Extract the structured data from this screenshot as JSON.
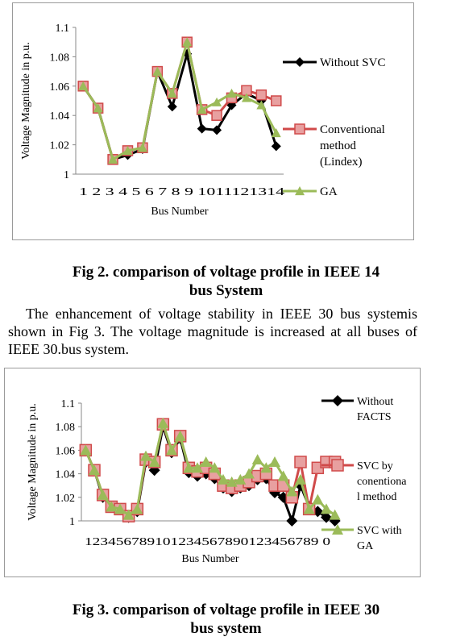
{
  "chart_data": [
    {
      "type": "line",
      "title": "",
      "xlabel": "Bus Number",
      "ylabel": "Voltage Magnitude in p.u.",
      "ylim": [
        1,
        1.1
      ],
      "yticks": [
        "1",
        "1.02",
        "1.04",
        "1.06",
        "1.08",
        "1.1"
      ],
      "x_tick_text": "1 2 3 4 5 6 7 8 9 1011121314",
      "categories": [
        "1",
        "2",
        "3",
        "4",
        "5",
        "6",
        "7",
        "8",
        "9",
        "10",
        "11",
        "12",
        "13",
        "14"
      ],
      "grid": false,
      "legend_position": "right",
      "series": [
        {
          "name": "Without SVC",
          "color": "#000000",
          "marker": "diamond",
          "values": [
            1.06,
            1.045,
            1.01,
            1.013,
            1.017,
            1.07,
            1.046,
            1.082,
            1.031,
            1.03,
            1.047,
            1.055,
            1.05,
            1.019
          ]
        },
        {
          "name": "Conventional method (Lindex)",
          "color": "#d04a4a",
          "marker": "square",
          "values": [
            1.06,
            1.045,
            1.01,
            1.016,
            1.018,
            1.07,
            1.055,
            1.09,
            1.044,
            1.04,
            1.052,
            1.057,
            1.054,
            1.05
          ]
        },
        {
          "name": "GA",
          "color": "#9bbb59",
          "marker": "triangle",
          "values": [
            1.06,
            1.045,
            1.01,
            1.016,
            1.018,
            1.07,
            1.055,
            1.09,
            1.044,
            1.049,
            1.055,
            1.052,
            1.047,
            1.028
          ]
        }
      ],
      "legend_lines": [
        [
          "Without SVC"
        ],
        [
          "Conventional",
          "method",
          "(Lindex)"
        ],
        [
          "GA"
        ]
      ]
    },
    {
      "type": "line",
      "title": "",
      "xlabel": "Bus Number",
      "ylabel": "Voltage Magnitude in p.u.",
      "ylim": [
        1,
        1.1
      ],
      "yticks": [
        "1",
        "1.02",
        "1.04",
        "1.06",
        "1.08",
        "1.1"
      ],
      "x_tick_text": "123456789101234567890123456789 0",
      "categories": [
        "1",
        "2",
        "3",
        "4",
        "5",
        "6",
        "7",
        "8",
        "9",
        "10",
        "11",
        "12",
        "13",
        "14",
        "15",
        "16",
        "17",
        "18",
        "19",
        "20",
        "21",
        "22",
        "23",
        "24",
        "25",
        "26",
        "27",
        "28",
        "29",
        "30"
      ],
      "grid": false,
      "legend_position": "right",
      "series": [
        {
          "name": "Without FACTS",
          "color": "#000000",
          "marker": "diamond",
          "values": [
            1.06,
            1.043,
            1.02,
            1.012,
            1.01,
            1.003,
            1.008,
            1.05,
            1.043,
            1.08,
            1.058,
            1.07,
            1.041,
            1.038,
            1.04,
            1.036,
            1.028,
            1.025,
            1.028,
            1.03,
            1.035,
            1.036,
            1.024,
            1.02,
            1.0,
            1.03,
            1.012,
            1.008,
            1.003,
            1.0
          ]
        },
        {
          "name": "SVC by conentional method",
          "color": "#d04a4a",
          "marker": "square",
          "values": [
            1.06,
            1.043,
            1.022,
            1.012,
            1.01,
            1.004,
            1.01,
            1.052,
            1.05,
            1.082,
            1.06,
            1.072,
            1.045,
            1.042,
            1.045,
            1.04,
            1.03,
            1.028,
            1.03,
            1.033,
            1.038,
            1.04,
            1.03,
            1.03,
            1.02,
            1.05,
            1.01,
            1.045,
            1.05,
            1.05
          ]
        },
        {
          "name": "SVC with GA",
          "color": "#9bbb59",
          "marker": "triangle",
          "values": [
            1.06,
            1.043,
            1.022,
            1.012,
            1.01,
            1.005,
            1.01,
            1.055,
            1.05,
            1.083,
            1.06,
            1.072,
            1.045,
            1.045,
            1.05,
            1.045,
            1.035,
            1.033,
            1.035,
            1.04,
            1.052,
            1.045,
            1.05,
            1.038,
            1.025,
            1.035,
            1.01,
            1.018,
            1.01,
            1.005
          ]
        }
      ],
      "legend_lines": [
        [
          "Without",
          "FACTS"
        ],
        [
          "SVC by",
          "conentiona",
          "l method"
        ],
        [
          "SVC with",
          "GA"
        ]
      ]
    }
  ],
  "captions": {
    "fig2_line1": "Fig 2. comparison of voltage profile in IEEE 14",
    "fig2_line2": "bus System",
    "fig3_line1": "Fig 3. comparison of voltage profile in IEEE 30",
    "fig3_line2": "bus system"
  },
  "paragraph": "The enhancement of  voltage stability in IEEE 30 bus systemis shown in Fig 3. The  voltage magnitude is increased at all buses of IEEE 30.bus system."
}
